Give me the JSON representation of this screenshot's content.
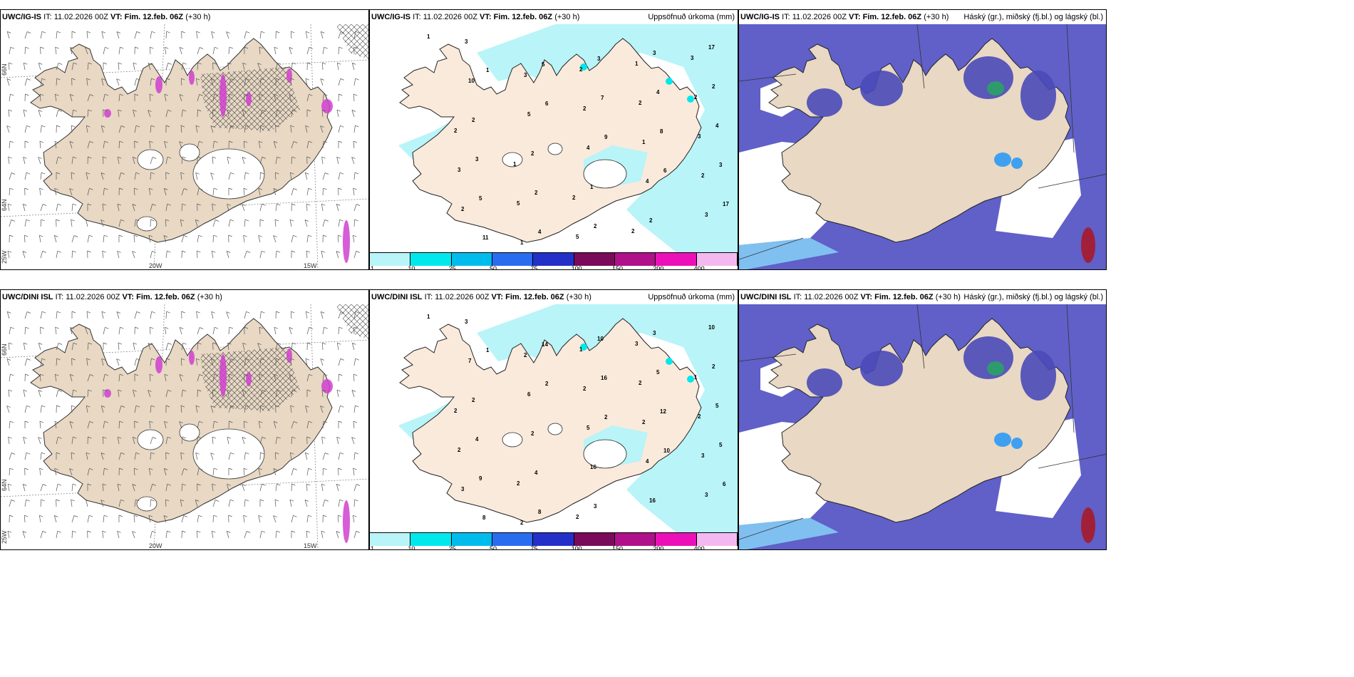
{
  "rows": [
    {
      "model": "UWC/IG-IS",
      "issue": "IT: 11.02.2026 00Z",
      "valid_label": "VT:",
      "valid": "Fim. 12.feb. 06Z",
      "lead": "(+30 h)"
    },
    {
      "model": "UWC/DINI ISL",
      "issue": "IT: 11.02.2026 00Z",
      "valid_label": "VT:",
      "valid": "Fim. 12.feb. 06Z",
      "lead": "(+30 h)"
    }
  ],
  "precip_title": "Uppsöfnuð úrkoma (mm)",
  "cloud_title": "Háský (gr.), miðský (fj.bl.) og lágský (bl.)",
  "colorbar": {
    "colors": [
      "#b8f4f8",
      "#00e8ec",
      "#00bcec",
      "#2a6cf0",
      "#2430c8",
      "#7a0a5a",
      "#b0108a",
      "#ec10b8",
      "#f4b8f0"
    ],
    "labels": [
      "1",
      "10",
      "25",
      "50",
      "75",
      "100",
      "150",
      "200",
      "400"
    ]
  },
  "axis_labels": {
    "lon_20": "20W",
    "lon_15": "15W",
    "lat_66": "66N",
    "lat_64": "64N",
    "lon_25": "25W"
  },
  "colors": {
    "land": "#e8d8c4",
    "land_light": "#faeadc",
    "precip_light": "#b8f4f8",
    "cloud_high": "#6060c8",
    "cloud_mid": "#4a4ab8",
    "cloud_low": "#80c0f0",
    "magenta": "#d040d0"
  },
  "precip_numbers_top": [
    "1",
    "1",
    "6",
    "9",
    "6",
    "17",
    "11",
    "5",
    "7",
    "8",
    "3",
    "5",
    "4",
    "3",
    "4",
    "4",
    "3",
    "2",
    "2",
    "3",
    "2",
    "2",
    "2",
    "1",
    "2",
    "17",
    "10",
    "5",
    "4",
    "4",
    "3",
    "3",
    "3",
    "2",
    "1",
    "2",
    "2",
    "1",
    "2",
    "2",
    "3",
    "3",
    "5",
    "5",
    "1",
    "2",
    "2",
    "1",
    "2",
    "2",
    "3"
  ],
  "precip_numbers_bottom": [
    "1",
    "1",
    "2",
    "2",
    "10",
    "6",
    "8",
    "14",
    "16",
    "12",
    "5",
    "9",
    "8",
    "10",
    "5",
    "5",
    "4",
    "4",
    "3",
    "3",
    "2",
    "2",
    "2",
    "16",
    "16",
    "10",
    "7",
    "6",
    "5",
    "4",
    "3",
    "3",
    "2",
    "2",
    "2",
    "3",
    "3",
    "2",
    "1",
    "2",
    "2",
    "2",
    "2",
    "2",
    "3",
    "1",
    "2"
  ]
}
